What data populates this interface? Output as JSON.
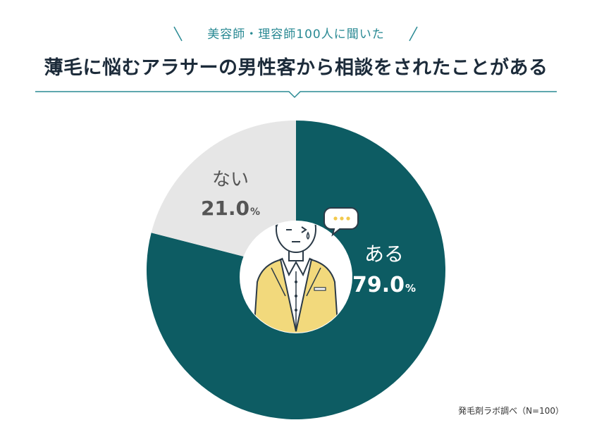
{
  "header": {
    "subtitle": "美容師・理容師100人に聞いた",
    "title": "薄毛に悩むアラサーの男性客から相談をされたことがある"
  },
  "source": "発毛剤ラボ調べ（N=100）",
  "colors": {
    "accent": "#2a8a94",
    "yes": "#0d5c63",
    "no": "#e6e6e6",
    "title": "#1c2b3a",
    "jacket": "#f2d97c"
  },
  "chart_data": {
    "type": "pie",
    "title": "薄毛に悩むアラサーの男性客から相談をされたことがある",
    "subtitle": "美容師・理容師100人に聞いた",
    "slices": [
      {
        "label": "ある",
        "value": 79.0,
        "display": "79.0",
        "unit": "%",
        "color": "#0d5c63"
      },
      {
        "label": "ない",
        "value": 21.0,
        "display": "21.0",
        "unit": "%",
        "color": "#e6e6e6"
      }
    ]
  }
}
